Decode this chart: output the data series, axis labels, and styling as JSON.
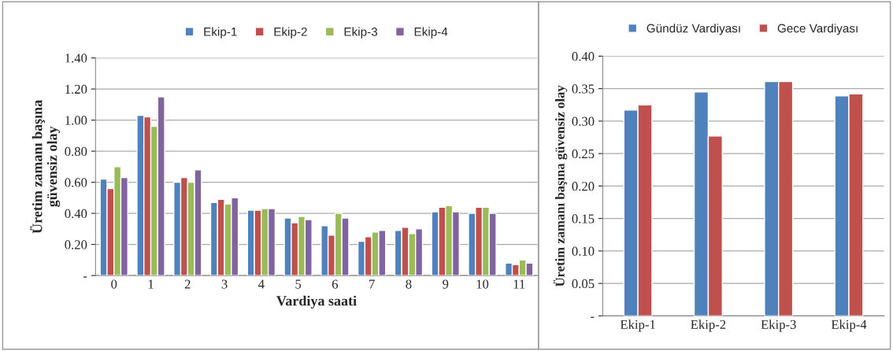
{
  "chart_data": [
    {
      "type": "bar",
      "xlabel": "Vardiya saati",
      "ylabel": "Üretim zamanı başına\ngüvensiz olay",
      "categories": [
        "0",
        "1",
        "2",
        "3",
        "4",
        "5",
        "6",
        "7",
        "8",
        "9",
        "10",
        "11"
      ],
      "series": [
        {
          "name": "Ekip-1",
          "color": "#4f81bd",
          "values": [
            0.62,
            1.03,
            0.6,
            0.47,
            0.42,
            0.37,
            0.32,
            0.22,
            0.29,
            0.41,
            0.4,
            0.08
          ]
        },
        {
          "name": "Ekip-2",
          "color": "#c0504d",
          "values": [
            0.56,
            1.02,
            0.63,
            0.49,
            0.42,
            0.34,
            0.26,
            0.25,
            0.31,
            0.44,
            0.44,
            0.07
          ]
        },
        {
          "name": "Ekip-3",
          "color": "#9bbb59",
          "values": [
            0.7,
            0.96,
            0.6,
            0.46,
            0.43,
            0.38,
            0.4,
            0.28,
            0.27,
            0.45,
            0.44,
            0.1
          ]
        },
        {
          "name": "Ekip-4",
          "color": "#8064a2",
          "values": [
            0.63,
            1.15,
            0.68,
            0.5,
            0.43,
            0.36,
            0.37,
            0.29,
            0.3,
            0.41,
            0.4,
            0.08
          ]
        }
      ],
      "ylim": [
        0,
        1.4
      ],
      "yticks": [
        {
          "value": 0,
          "label": "-"
        },
        {
          "value": 0.2,
          "label": "0.20"
        },
        {
          "value": 0.4,
          "label": "0.40"
        },
        {
          "value": 0.6,
          "label": "0.60"
        },
        {
          "value": 0.8,
          "label": "0.80"
        },
        {
          "value": 1.0,
          "label": "1.00"
        },
        {
          "value": 1.2,
          "label": "1.20"
        },
        {
          "value": 1.4,
          "label": "1.40"
        }
      ],
      "grid": "y",
      "legend": "top"
    },
    {
      "type": "bar",
      "ylabel": "Üretim zamanı başına güvensiz olay",
      "categories": [
        "Ekip-1",
        "Ekip-2",
        "Ekip-3",
        "Ekip-4"
      ],
      "series": [
        {
          "name": "Gündüz Vardiyası",
          "color": "#4f81bd",
          "values": [
            0.317,
            0.345,
            0.361,
            0.339
          ]
        },
        {
          "name": "Gece Vardiyası",
          "color": "#c0504d",
          "values": [
            0.325,
            0.277,
            0.361,
            0.342
          ]
        }
      ],
      "ylim": [
        0,
        0.4
      ],
      "yticks": [
        {
          "value": 0,
          "label": "-"
        },
        {
          "value": 0.05,
          "label": "0.05"
        },
        {
          "value": 0.1,
          "label": "0.10"
        },
        {
          "value": 0.15,
          "label": "0.15"
        },
        {
          "value": 0.2,
          "label": "0.20"
        },
        {
          "value": 0.25,
          "label": "0.25"
        },
        {
          "value": 0.3,
          "label": "0.30"
        },
        {
          "value": 0.35,
          "label": "0.35"
        },
        {
          "value": 0.4,
          "label": "0.40"
        }
      ],
      "grid": "y",
      "legend": "top"
    }
  ]
}
